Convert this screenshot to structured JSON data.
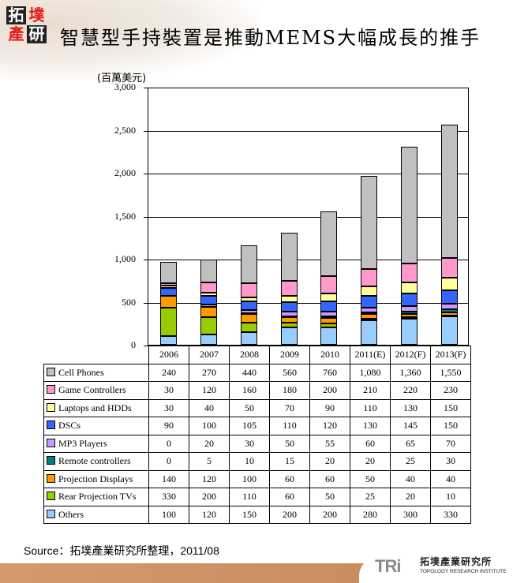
{
  "header": {
    "logo_chars": [
      "拓",
      "墣",
      "產",
      "研"
    ],
    "title": "智慧型手持裝置是推動MEMS大幅成長的推手"
  },
  "chart_data": {
    "type": "bar",
    "stacked": true,
    "title": "智慧型手持裝置是推動MEMS大幅成長的推手",
    "ylabel": "(百萬美元)",
    "xlabel": "",
    "ylim": [
      0,
      3000
    ],
    "yticks": [
      "0",
      "500",
      "1,000",
      "1,500",
      "2,000",
      "2,500",
      "3,000"
    ],
    "grid": true,
    "legend_position": "table-below",
    "categories": [
      "2006",
      "2007",
      "2008",
      "2009",
      "2010",
      "2011(E)",
      "2012(F)",
      "2013(F)"
    ],
    "series": [
      {
        "name": "Others",
        "color": "#99ccff",
        "values": [
          100,
          120,
          150,
          200,
          200,
          280,
          300,
          330
        ]
      },
      {
        "name": "Rear Projection TVs",
        "color": "#99cc00",
        "values": [
          330,
          200,
          110,
          60,
          50,
          25,
          20,
          10
        ]
      },
      {
        "name": "Projection Displays",
        "color": "#ff9900",
        "values": [
          140,
          120,
          100,
          60,
          60,
          50,
          40,
          40
        ]
      },
      {
        "name": "Remote controllers",
        "color": "#008080",
        "values": [
          0,
          5,
          10,
          15,
          20,
          20,
          25,
          30
        ]
      },
      {
        "name": "MP3 Players",
        "color": "#cc99ff",
        "values": [
          0,
          20,
          30,
          50,
          55,
          60,
          65,
          70
        ]
      },
      {
        "name": "DSCs",
        "color": "#3366ff",
        "values": [
          90,
          100,
          105,
          110,
          120,
          130,
          145,
          150
        ]
      },
      {
        "name": "Laptops and HDDs",
        "color": "#ffff99",
        "values": [
          30,
          40,
          50,
          70,
          90,
          110,
          130,
          150
        ]
      },
      {
        "name": "Game Controllers",
        "color": "#ff99cc",
        "values": [
          30,
          120,
          160,
          180,
          200,
          210,
          220,
          230
        ]
      },
      {
        "name": "Cell Phones",
        "color": "#c0c0c0",
        "values": [
          240,
          270,
          440,
          560,
          760,
          1080,
          1360,
          1550
        ]
      }
    ]
  },
  "table": {
    "rows": [
      {
        "label": "Cell Phones",
        "color": "#c0c0c0",
        "cells": [
          "240",
          "270",
          "440",
          "560",
          "760",
          "1,080",
          "1,360",
          "1,550"
        ]
      },
      {
        "label": "Game Controllers",
        "color": "#ff99cc",
        "cells": [
          "30",
          "120",
          "160",
          "180",
          "200",
          "210",
          "220",
          "230"
        ]
      },
      {
        "label": "Laptops and HDDs",
        "color": "#ffff99",
        "cells": [
          "30",
          "40",
          "50",
          "70",
          "90",
          "110",
          "130",
          "150"
        ]
      },
      {
        "label": "DSCs",
        "color": "#3366ff",
        "cells": [
          "90",
          "100",
          "105",
          "110",
          "120",
          "130",
          "145",
          "150"
        ]
      },
      {
        "label": "MP3 Players",
        "color": "#cc99ff",
        "cells": [
          "0",
          "20",
          "30",
          "50",
          "55",
          "60",
          "65",
          "70"
        ]
      },
      {
        "label": "Remote controllers",
        "color": "#008080",
        "cells": [
          "0",
          "5",
          "10",
          "15",
          "20",
          "20",
          "25",
          "30"
        ]
      },
      {
        "label": "Projection Displays",
        "color": "#ff9900",
        "cells": [
          "140",
          "120",
          "100",
          "60",
          "60",
          "50",
          "40",
          "40"
        ]
      },
      {
        "label": "Rear Projection TVs",
        "color": "#99cc00",
        "cells": [
          "330",
          "200",
          "110",
          "60",
          "50",
          "25",
          "20",
          "10"
        ]
      },
      {
        "label": "Others",
        "color": "#99ccff",
        "cells": [
          "100",
          "120",
          "150",
          "200",
          "200",
          "280",
          "300",
          "330"
        ]
      }
    ]
  },
  "footer": {
    "source": "Source：拓墣產業研究所整理，2011/08",
    "brand_abbr": "TRi",
    "brand_name": "拓墣產業研究所",
    "brand_en": "TOPOLOGY RESEARCH INSTITUTE"
  }
}
